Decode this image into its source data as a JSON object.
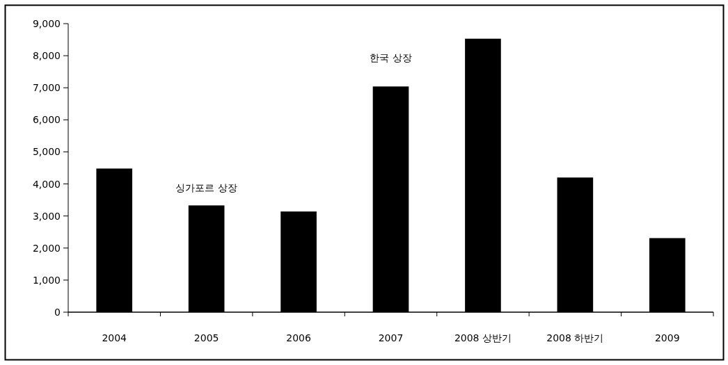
{
  "chart_data": {
    "type": "bar",
    "categories": [
      "2004",
      "2005",
      "2006",
      "2007",
      "2008 상반기",
      "2008 하반기",
      "2009"
    ],
    "values": [
      4480,
      3330,
      3140,
      7040,
      8530,
      4200,
      2310
    ],
    "color": "#000000",
    "ylim": [
      0,
      9000
    ],
    "yticks": [
      {
        "value": 0,
        "label": "0"
      },
      {
        "value": 1000,
        "label": "1,000"
      },
      {
        "value": 2000,
        "label": "2,000"
      },
      {
        "value": 3000,
        "label": "3,000"
      },
      {
        "value": 4000,
        "label": "4,000"
      },
      {
        "value": 5000,
        "label": "5,000"
      },
      {
        "value": 6000,
        "label": "6,000"
      },
      {
        "value": 7000,
        "label": "7,000"
      },
      {
        "value": 8000,
        "label": "8,000"
      },
      {
        "value": 9000,
        "label": "9,000"
      }
    ],
    "grid": false,
    "legend": false,
    "annotations": [
      "싱가포르 상장",
      "한국 상장"
    ]
  }
}
